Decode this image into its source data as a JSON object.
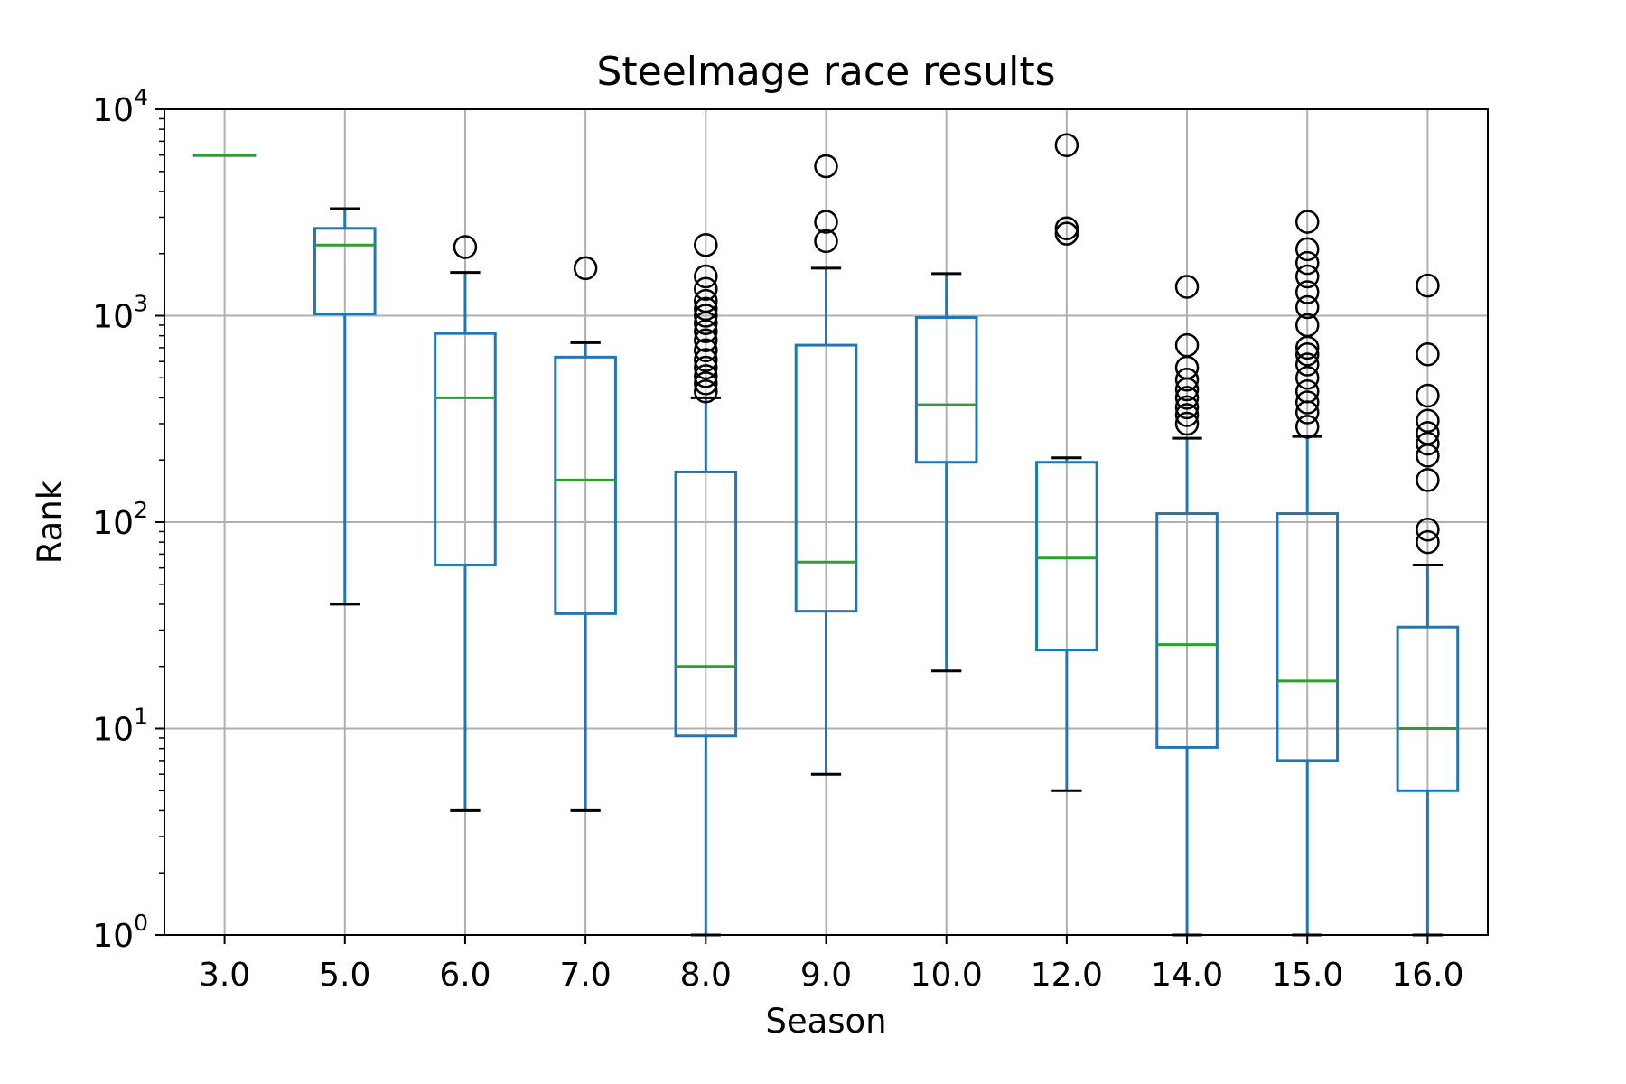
{
  "chart_data": {
    "type": "box",
    "title": "Steelmage race results",
    "xlabel": "Season",
    "ylabel": "Rank",
    "yscale": "log",
    "ylim": [
      1,
      10000
    ],
    "yticks": [
      {
        "value": 1,
        "base": "10",
        "exp": "0"
      },
      {
        "value": 10,
        "base": "10",
        "exp": "1"
      },
      {
        "value": 100,
        "base": "10",
        "exp": "2"
      },
      {
        "value": 1000,
        "base": "10",
        "exp": "3"
      },
      {
        "value": 10000,
        "base": "10",
        "exp": "4"
      }
    ],
    "grid": true,
    "colors": {
      "box": "#1f77b4",
      "median": "#2ca02c",
      "whisker_cap": "#000000",
      "flier": "#000000",
      "grid": "#b0b0b0"
    },
    "categories": [
      "3.0",
      "5.0",
      "6.0",
      "7.0",
      "8.0",
      "9.0",
      "10.0",
      "12.0",
      "14.0",
      "15.0",
      "16.0"
    ],
    "boxes": [
      {
        "category": "3.0",
        "whislo": 6000,
        "q1": 6000,
        "med": 6000,
        "q3": 6000,
        "whishi": 6000,
        "fliers": []
      },
      {
        "category": "5.0",
        "whislo": 40,
        "q1": 1020,
        "med": 2200,
        "q3": 2650,
        "whishi": 3300,
        "fliers": []
      },
      {
        "category": "6.0",
        "whislo": 4,
        "q1": 62,
        "med": 400,
        "q3": 820,
        "whishi": 1620,
        "fliers": [
          2150
        ]
      },
      {
        "category": "7.0",
        "whislo": 4,
        "q1": 36,
        "med": 160,
        "q3": 630,
        "whishi": 740,
        "fliers": [
          1700
        ]
      },
      {
        "category": "8.0",
        "whislo": 1,
        "q1": 9.2,
        "med": 20,
        "q3": 175,
        "whishi": 400,
        "fliers": [
          430,
          470,
          510,
          560,
          610,
          680,
          760,
          840,
          920,
          1000,
          1080,
          1180,
          1350,
          1550,
          2200
        ]
      },
      {
        "category": "9.0",
        "whislo": 6,
        "q1": 37,
        "med": 64,
        "q3": 720,
        "whishi": 1700,
        "fliers": [
          2300,
          2850,
          5300
        ]
      },
      {
        "category": "10.0",
        "whislo": 19,
        "q1": 195,
        "med": 370,
        "q3": 980,
        "whishi": 1600,
        "fliers": []
      },
      {
        "category": "12.0",
        "whislo": 5,
        "q1": 24,
        "med": 67,
        "q3": 195,
        "whishi": 205,
        "fliers": [
          2500,
          2650,
          6700
        ]
      },
      {
        "category": "14.0",
        "whislo": 1,
        "q1": 8.1,
        "med": 25.5,
        "q3": 110,
        "whishi": 255,
        "fliers": [
          300,
          330,
          360,
          400,
          440,
          490,
          560,
          720,
          1380
        ]
      },
      {
        "category": "15.0",
        "whislo": 1,
        "q1": 7,
        "med": 17,
        "q3": 110,
        "whishi": 260,
        "fliers": [
          290,
          340,
          380,
          430,
          500,
          580,
          650,
          700,
          900,
          1100,
          1300,
          1550,
          1800,
          2100,
          2850
        ]
      },
      {
        "category": "16.0",
        "whislo": 1,
        "q1": 5,
        "med": 10,
        "q3": 31,
        "whishi": 62,
        "fliers": [
          80,
          92,
          160,
          210,
          240,
          270,
          310,
          410,
          650,
          1400
        ]
      }
    ]
  }
}
